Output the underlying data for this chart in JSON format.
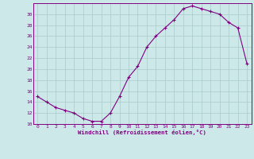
{
  "x": [
    0,
    1,
    2,
    3,
    4,
    5,
    6,
    7,
    8,
    9,
    10,
    11,
    12,
    13,
    14,
    15,
    16,
    17,
    18,
    19,
    20,
    21,
    22,
    23
  ],
  "y": [
    15,
    14,
    13,
    12.5,
    12,
    11,
    10.5,
    10.5,
    12,
    15,
    18.5,
    20.5,
    24,
    26,
    27.5,
    29,
    31,
    31.5,
    31,
    30.5,
    30,
    28.5,
    27.5,
    21
  ],
  "line_color": "#800080",
  "marker": "+",
  "bg_color": "#cce8e8",
  "grid_color": "#aacccc",
  "xlabel": "Windchill (Refroidissement éolien,°C)",
  "xlabel_color": "#800080",
  "tick_color": "#800080",
  "spine_color": "#800080",
  "ylim": [
    10,
    32
  ],
  "xlim": [
    -0.5,
    23.5
  ],
  "yticks": [
    10,
    12,
    14,
    16,
    18,
    20,
    22,
    24,
    26,
    28,
    30
  ],
  "xticks": [
    0,
    1,
    2,
    3,
    4,
    5,
    6,
    7,
    8,
    9,
    10,
    11,
    12,
    13,
    14,
    15,
    16,
    17,
    18,
    19,
    20,
    21,
    22,
    23
  ]
}
